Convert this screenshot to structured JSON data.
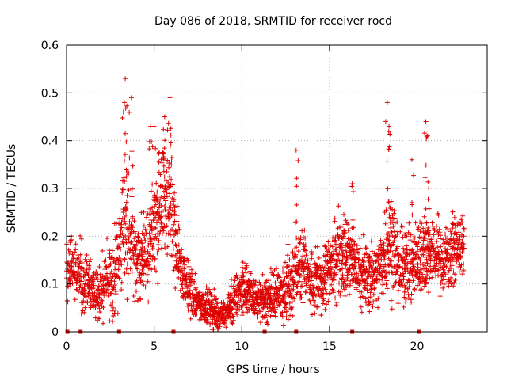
{
  "chart_data": {
    "type": "scatter",
    "title": "Day 086 of 2018, SRMTID for receiver rocd",
    "xlabel": "GPS time / hours",
    "ylabel": "SRMTID / TECUs",
    "xlim": [
      0,
      24
    ],
    "ylim": [
      0,
      0.6
    ],
    "xticks": [
      0,
      5,
      10,
      15,
      20
    ],
    "yticks": [
      0,
      0.1,
      0.2,
      0.3,
      0.4,
      0.5,
      0.6
    ],
    "xtick_labels": [
      "0",
      "5",
      "10",
      "15",
      "20"
    ],
    "ytick_labels": [
      "0",
      "0.1",
      "0.2",
      "0.3",
      "0.4",
      "0.5",
      "0.6"
    ],
    "grid": true,
    "marker": "+",
    "color": "#e00000",
    "zero_markers_x": [
      0.05,
      0.8,
      3.0,
      6.1,
      11.3,
      13.1,
      16.3,
      20.1
    ],
    "profile": {
      "x": [
        0,
        0.5,
        1,
        1.5,
        2,
        2.5,
        3,
        3.3,
        3.6,
        4,
        4.5,
        5,
        5.5,
        6,
        6.5,
        7,
        7.5,
        8,
        8.5,
        9,
        9.5,
        10,
        10.5,
        11,
        11.5,
        12,
        12.5,
        13,
        13.5,
        14,
        14.5,
        15,
        15.5,
        16,
        16.5,
        17,
        17.5,
        18,
        18.5,
        19,
        19.5,
        20,
        20.5,
        21,
        21.5,
        22,
        22.5,
        22.7
      ],
      "y": [
        0.14,
        0.13,
        0.1,
        0.08,
        0.09,
        0.11,
        0.15,
        0.25,
        0.22,
        0.14,
        0.16,
        0.2,
        0.27,
        0.24,
        0.14,
        0.09,
        0.06,
        0.05,
        0.04,
        0.035,
        0.06,
        0.09,
        0.08,
        0.06,
        0.07,
        0.08,
        0.09,
        0.12,
        0.14,
        0.1,
        0.1,
        0.13,
        0.16,
        0.15,
        0.14,
        0.12,
        0.11,
        0.15,
        0.2,
        0.14,
        0.13,
        0.15,
        0.16,
        0.17,
        0.15,
        0.17,
        0.18,
        0.17
      ],
      "spread": [
        0.06,
        0.06,
        0.05,
        0.05,
        0.05,
        0.06,
        0.08,
        0.12,
        0.1,
        0.06,
        0.07,
        0.09,
        0.12,
        0.1,
        0.05,
        0.04,
        0.03,
        0.03,
        0.03,
        0.02,
        0.04,
        0.04,
        0.04,
        0.03,
        0.04,
        0.04,
        0.05,
        0.07,
        0.07,
        0.05,
        0.05,
        0.06,
        0.07,
        0.07,
        0.06,
        0.06,
        0.05,
        0.07,
        0.09,
        0.06,
        0.06,
        0.07,
        0.06,
        0.06,
        0.06,
        0.05,
        0.05,
        0.05
      ]
    },
    "peaks": [
      {
        "x": 3.35,
        "y": 0.53
      },
      {
        "x": 3.7,
        "y": 0.49
      },
      {
        "x": 3.3,
        "y": 0.48
      },
      {
        "x": 5.9,
        "y": 0.49
      },
      {
        "x": 5.6,
        "y": 0.45
      },
      {
        "x": 4.8,
        "y": 0.43
      },
      {
        "x": 5.0,
        "y": 0.43
      },
      {
        "x": 13.1,
        "y": 0.38
      },
      {
        "x": 16.3,
        "y": 0.31
      },
      {
        "x": 18.3,
        "y": 0.48
      },
      {
        "x": 18.4,
        "y": 0.43
      },
      {
        "x": 20.5,
        "y": 0.44
      },
      {
        "x": 20.6,
        "y": 0.41
      },
      {
        "x": 19.7,
        "y": 0.36
      }
    ]
  }
}
